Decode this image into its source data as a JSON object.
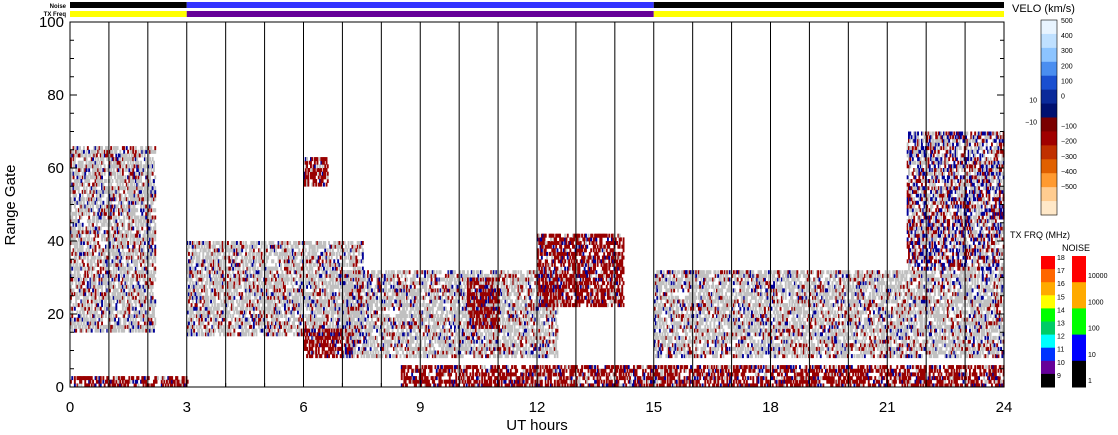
{
  "chart_data": {
    "type": "heatmap",
    "title": "",
    "xlabel": "UT hours",
    "ylabel": "Range Gate",
    "xlim": [
      0,
      24
    ],
    "ylim": [
      0,
      100
    ],
    "x_ticks": [
      "0",
      "3",
      "6",
      "9",
      "12",
      "15",
      "18",
      "21",
      "24"
    ],
    "y_ticks": [
      "0",
      "20",
      "40",
      "60",
      "80",
      "100"
    ],
    "grid_hours": [
      1,
      2,
      3,
      4,
      5,
      6,
      7,
      8,
      9,
      10,
      11,
      12,
      13,
      14,
      15,
      16,
      17,
      18,
      19,
      20,
      21,
      22,
      23
    ],
    "top_strips": {
      "noise_label": "Noise",
      "txfreq_label": "TX Freq",
      "noise_segments": [
        {
          "from": 0,
          "to": 3,
          "level": "low",
          "color": "#000000"
        },
        {
          "from": 3,
          "to": 15,
          "level": "mixed",
          "color": "#3333ff"
        },
        {
          "from": 15,
          "to": 24,
          "level": "low",
          "color": "#000000"
        }
      ],
      "txfreq_segments": [
        {
          "from": 0,
          "to": 3,
          "freq": "15",
          "color": "#ffff00"
        },
        {
          "from": 3,
          "to": 15,
          "freq": "10",
          "color": "#660099"
        },
        {
          "from": 15,
          "to": 24,
          "freq": "15",
          "color": "#ffff00"
        }
      ]
    },
    "scatter_regions": [
      {
        "x0": 0.0,
        "x1": 3.0,
        "y0": 0,
        "y1": 3,
        "dominant": "velocity_negative"
      },
      {
        "x0": 0.0,
        "x1": 2.2,
        "y0": 15,
        "y1": 66,
        "dominant": "ground_scatter"
      },
      {
        "x0": 3.0,
        "x1": 7.5,
        "y0": 14,
        "y1": 40,
        "dominant": "ground_scatter"
      },
      {
        "x0": 6.0,
        "x1": 7.3,
        "y0": 8,
        "y1": 16,
        "dominant": "velocity_negative"
      },
      {
        "x0": 6.0,
        "x1": 6.6,
        "y0": 55,
        "y1": 63,
        "dominant": "velocity_negative"
      },
      {
        "x0": 7.0,
        "x1": 12.5,
        "y0": 8,
        "y1": 32,
        "dominant": "ground_scatter"
      },
      {
        "x0": 10.2,
        "x1": 11.0,
        "y0": 16,
        "y1": 30,
        "dominant": "velocity_negative"
      },
      {
        "x0": 12.0,
        "x1": 14.2,
        "y0": 22,
        "y1": 42,
        "dominant": "velocity_negative"
      },
      {
        "x0": 8.5,
        "x1": 15.0,
        "y0": 0,
        "y1": 6,
        "dominant": "velocity_negative"
      },
      {
        "x0": 15.0,
        "x1": 24.0,
        "y0": 8,
        "y1": 32,
        "dominant": "ground_scatter"
      },
      {
        "x0": 15.0,
        "x1": 24.0,
        "y0": 0,
        "y1": 6,
        "dominant": "velocity_negative"
      },
      {
        "x0": 21.5,
        "x1": 24.0,
        "y0": 32,
        "y1": 70,
        "dominant": "mixed"
      }
    ],
    "color_scales": {
      "velocity": {
        "label": "VELO (km/s)",
        "ticks": [
          "500",
          "400",
          "300",
          "200",
          "100",
          "10",
          "0",
          "−10",
          "−100",
          "−200",
          "−300",
          "−400",
          "−500"
        ],
        "colors": [
          "#e8f4ff",
          "#bfe0ff",
          "#8cc4ff",
          "#4a8ef0",
          "#1a4fd0",
          "#0a2a9a",
          "#001070",
          "#7a0000",
          "#a00000",
          "#c03000",
          "#e06000",
          "#ff9a30",
          "#ffcc90",
          "#ffe8c8"
        ]
      },
      "tx_freq": {
        "label": "TX FRQ (MHz)",
        "ticks": [
          "18",
          "17",
          "16",
          "15",
          "14",
          "13",
          "12",
          "11",
          "10",
          "9"
        ],
        "colors": [
          "#ff0000",
          "#ff6600",
          "#ffaa00",
          "#ffff00",
          "#00ff00",
          "#00cc66",
          "#00ffff",
          "#0033ff",
          "#660099",
          "#000000"
        ]
      },
      "noise": {
        "label": "NOISE",
        "ticks": [
          "10000",
          "1000",
          "100",
          "10",
          "1"
        ],
        "colors": [
          "#ff0000",
          "#ffaa00",
          "#00ff00",
          "#0000ff",
          "#000000"
        ]
      }
    },
    "colors": {
      "ground_scatter": "#c0c0c0",
      "velocity_negative": "#990000",
      "velocity_positive": "#000099"
    }
  }
}
